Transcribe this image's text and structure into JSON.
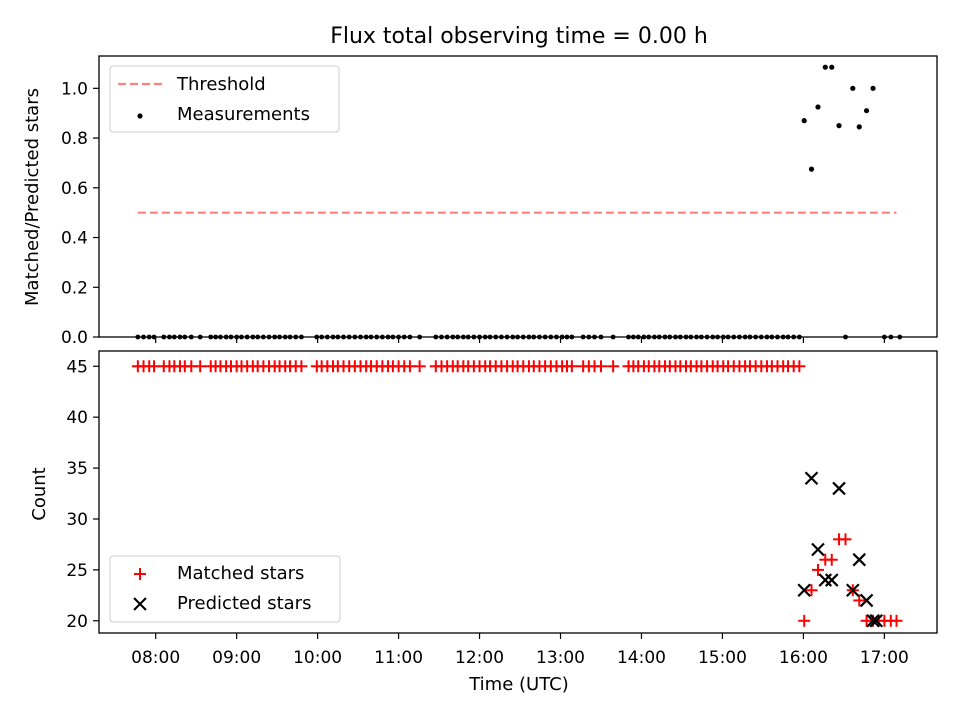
{
  "title": "Flux total observing time = 0.00 h",
  "chart_data": [
    {
      "type": "scatter",
      "ylabel": "Matched/Predicted stars",
      "ylim": [
        0,
        1.13
      ],
      "yticks": [
        0.0,
        0.2,
        0.4,
        0.6,
        0.8,
        1.0
      ],
      "ytick_labels": [
        "0.0",
        "0.2",
        "0.4",
        "0.6",
        "0.8",
        "1.0"
      ],
      "threshold": {
        "value": 0.5,
        "x_range": [
          7.78,
          17.15
        ],
        "color": "#ff7f7f"
      },
      "legend": {
        "position": "top-left",
        "entries": [
          "Threshold",
          "Measurements"
        ]
      },
      "measurements": {
        "zero_times": [
          7.78,
          7.85,
          7.92,
          7.98,
          8.1,
          8.17,
          8.23,
          8.3,
          8.36,
          8.44,
          8.55,
          8.68,
          8.74,
          8.8,
          8.87,
          8.93,
          9.0,
          9.06,
          9.13,
          9.2,
          9.26,
          9.33,
          9.4,
          9.47,
          9.53,
          9.6,
          9.66,
          9.73,
          9.8,
          9.99,
          10.05,
          10.12,
          10.19,
          10.25,
          10.32,
          10.39,
          10.46,
          10.53,
          10.6,
          10.66,
          10.73,
          10.8,
          10.87,
          10.93,
          11.0,
          11.07,
          11.14,
          11.26,
          11.46,
          11.53,
          11.6,
          11.67,
          11.73,
          11.8,
          11.86,
          11.93,
          12.0,
          12.07,
          12.13,
          12.2,
          12.27,
          12.34,
          12.41,
          12.47,
          12.54,
          12.61,
          12.67,
          12.74,
          12.81,
          12.88,
          12.95,
          13.02,
          13.08,
          13.14,
          13.28,
          13.35,
          13.42,
          13.5,
          13.65,
          13.84,
          13.9,
          13.96,
          14.03,
          14.09,
          14.16,
          14.22,
          14.29,
          14.35,
          14.42,
          14.48,
          14.55,
          14.61,
          14.68,
          14.74,
          14.81,
          14.88,
          14.94,
          15.01,
          15.07,
          15.14,
          15.21,
          15.28,
          15.34,
          15.41,
          15.48,
          15.55,
          15.61,
          15.68,
          15.75,
          15.81,
          15.88,
          15.95,
          16.52,
          17.0,
          17.08,
          17.19
        ],
        "points": [
          {
            "t": 16.01,
            "v": 0.87
          },
          {
            "t": 16.1,
            "v": 0.675
          },
          {
            "t": 16.18,
            "v": 0.925
          },
          {
            "t": 16.27,
            "v": 1.085
          },
          {
            "t": 16.35,
            "v": 1.085
          },
          {
            "t": 16.44,
            "v": 0.85
          },
          {
            "t": 16.61,
            "v": 1.0
          },
          {
            "t": 16.69,
            "v": 0.845
          },
          {
            "t": 16.78,
            "v": 0.91
          },
          {
            "t": 16.86,
            "v": 1.0
          }
        ]
      }
    },
    {
      "type": "scatter",
      "xlabel": "Time (UTC)",
      "ylabel": "Count",
      "ylim": [
        18.8,
        46.5
      ],
      "yticks": [
        20,
        25,
        30,
        35,
        40,
        45
      ],
      "ytick_labels": [
        "20",
        "25",
        "30",
        "35",
        "40",
        "45"
      ],
      "xlim": [
        7.3,
        17.65
      ],
      "xticks": [
        8,
        9,
        10,
        11,
        12,
        13,
        14,
        15,
        16,
        17
      ],
      "xtick_labels": [
        "08:00",
        "09:00",
        "10:00",
        "11:00",
        "12:00",
        "13:00",
        "14:00",
        "15:00",
        "16:00",
        "17:00"
      ],
      "legend": {
        "position": "bottom-left",
        "entries": [
          "Matched stars",
          "Predicted stars"
        ]
      },
      "matched": {
        "flat_value": 45,
        "flat_times": [
          7.78,
          7.85,
          7.92,
          7.98,
          8.1,
          8.17,
          8.23,
          8.3,
          8.36,
          8.44,
          8.55,
          8.68,
          8.74,
          8.8,
          8.87,
          8.93,
          9.0,
          9.06,
          9.13,
          9.2,
          9.26,
          9.33,
          9.4,
          9.47,
          9.53,
          9.6,
          9.66,
          9.73,
          9.8,
          9.99,
          10.05,
          10.12,
          10.19,
          10.25,
          10.32,
          10.39,
          10.46,
          10.53,
          10.6,
          10.66,
          10.73,
          10.8,
          10.87,
          10.93,
          11.0,
          11.07,
          11.14,
          11.26,
          11.46,
          11.53,
          11.6,
          11.67,
          11.73,
          11.8,
          11.86,
          11.93,
          12.0,
          12.07,
          12.13,
          12.2,
          12.27,
          12.34,
          12.41,
          12.47,
          12.54,
          12.61,
          12.67,
          12.74,
          12.81,
          12.88,
          12.95,
          13.02,
          13.08,
          13.14,
          13.28,
          13.35,
          13.42,
          13.5,
          13.65,
          13.84,
          13.9,
          13.96,
          14.03,
          14.09,
          14.16,
          14.22,
          14.29,
          14.35,
          14.42,
          14.48,
          14.55,
          14.61,
          14.68,
          14.74,
          14.81,
          14.88,
          14.94,
          15.01,
          15.07,
          15.14,
          15.21,
          15.28,
          15.34,
          15.41,
          15.48,
          15.55,
          15.61,
          15.68,
          15.75,
          15.81,
          15.88,
          15.95
        ],
        "late_points": [
          {
            "t": 16.01,
            "v": 20
          },
          {
            "t": 16.1,
            "v": 23
          },
          {
            "t": 16.18,
            "v": 25
          },
          {
            "t": 16.27,
            "v": 26
          },
          {
            "t": 16.35,
            "v": 26
          },
          {
            "t": 16.44,
            "v": 28
          },
          {
            "t": 16.52,
            "v": 28
          },
          {
            "t": 16.61,
            "v": 23
          },
          {
            "t": 16.69,
            "v": 22
          },
          {
            "t": 16.78,
            "v": 20
          },
          {
            "t": 16.86,
            "v": 20
          },
          {
            "t": 16.93,
            "v": 20
          },
          {
            "t": 17.0,
            "v": 20
          },
          {
            "t": 17.08,
            "v": 20
          },
          {
            "t": 17.15,
            "v": 20
          }
        ]
      },
      "predicted": {
        "points": [
          {
            "t": 16.01,
            "v": 23
          },
          {
            "t": 16.1,
            "v": 34
          },
          {
            "t": 16.18,
            "v": 27
          },
          {
            "t": 16.27,
            "v": 24
          },
          {
            "t": 16.35,
            "v": 24
          },
          {
            "t": 16.44,
            "v": 33
          },
          {
            "t": 16.61,
            "v": 23
          },
          {
            "t": 16.69,
            "v": 26
          },
          {
            "t": 16.78,
            "v": 22
          },
          {
            "t": 16.86,
            "v": 20
          },
          {
            "t": 16.9,
            "v": 20
          }
        ]
      }
    }
  ]
}
